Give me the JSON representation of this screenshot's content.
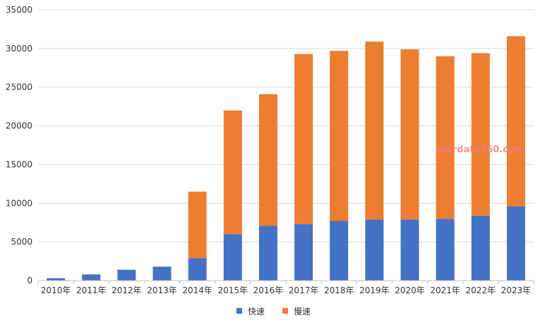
{
  "chart_data": {
    "type": "bar",
    "stacked": true,
    "categories": [
      "2010年",
      "2011年",
      "2012年",
      "2013年",
      "2014年",
      "2015年",
      "2016年",
      "2017年",
      "2018年",
      "2019年",
      "2020年",
      "2021年",
      "2022年",
      "2023年"
    ],
    "series": [
      {
        "name": "快速",
        "color": "#4472c4",
        "values": [
          300,
          800,
          1400,
          1800,
          2900,
          6000,
          7100,
          7300,
          7700,
          7900,
          7900,
          8000,
          8400,
          9600
        ]
      },
      {
        "name": "慢速",
        "color": "#ed7d31",
        "values": [
          0,
          0,
          0,
          0,
          8600,
          16000,
          17000,
          22000,
          22000,
          23000,
          22000,
          21000,
          21000,
          22000
        ]
      }
    ],
    "ylim": [
      0,
      35000
    ],
    "yticks": [
      0,
      5000,
      10000,
      15000,
      20000,
      25000,
      30000,
      35000
    ],
    "grid": true,
    "legend_position": "bottom",
    "title": "",
    "xlabel": "",
    "ylabel": ""
  },
  "watermark": "stardata360.com"
}
